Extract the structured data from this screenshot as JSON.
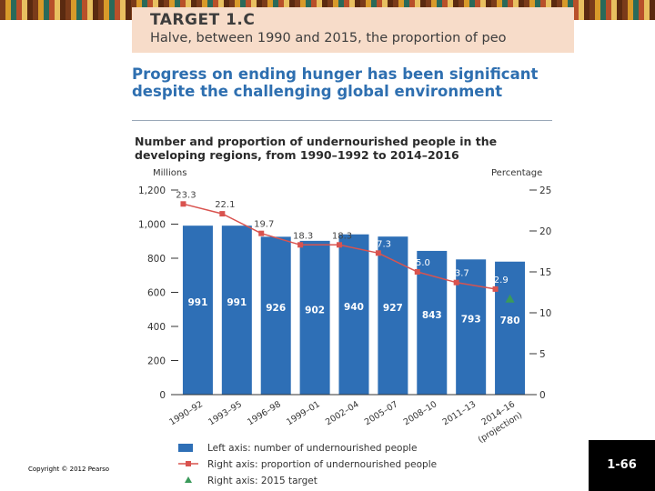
{
  "target": {
    "title": "TARGET 1.C",
    "text": "Halve, between 1990 and 2015, the proportion of peo"
  },
  "headline": "Progress on ending hunger has been significant despite the challenging global environment",
  "chart_title": "Number and proportion of undernourished people in the developing regions, from 1990–1992 to 2014–2016",
  "footer": {
    "copyright": "Copyright © 2012 Pearso",
    "slide_number": "1-66"
  },
  "colors": {
    "bar": "#2e6fb6",
    "line": "#d9534f",
    "target": "#3a9a5a"
  },
  "chart_data": {
    "type": "bar",
    "title": "Number and proportion of undernourished people in the developing regions, from 1990–1992 to 2014–2016",
    "ylabel": "Millions",
    "y2label": "Percentage",
    "ylim": [
      0,
      1200
    ],
    "y2lim": [
      0,
      25
    ],
    "yticks": [
      "0",
      "200",
      "400",
      "600",
      "800",
      "1,000",
      "1,200"
    ],
    "y2ticks": [
      "0",
      "5",
      "10",
      "15",
      "20",
      "25"
    ],
    "categories": [
      "1990–92",
      "1993–95",
      "1996–98",
      "1999–01",
      "2002–04",
      "2005–07",
      "2008–10",
      "2011–13",
      "2014–16"
    ],
    "category_note": "(projection)",
    "series": [
      {
        "name": "Left axis: number of undernourished people",
        "kind": "bar",
        "axis": "left",
        "values": [
          991,
          991,
          926,
          902,
          940,
          927,
          843,
          793,
          780
        ]
      },
      {
        "name": "Right axis: proportion of undernourished people",
        "kind": "line",
        "axis": "right",
        "values": [
          23.3,
          22.1,
          19.7,
          18.3,
          18.3,
          17.3,
          15.0,
          13.7,
          12.9
        ]
      },
      {
        "name": "Right axis: 2015 target",
        "kind": "marker",
        "axis": "right",
        "values": [
          null,
          null,
          null,
          null,
          null,
          null,
          null,
          null,
          11.7
        ]
      }
    ],
    "legend_position": "bottom"
  }
}
